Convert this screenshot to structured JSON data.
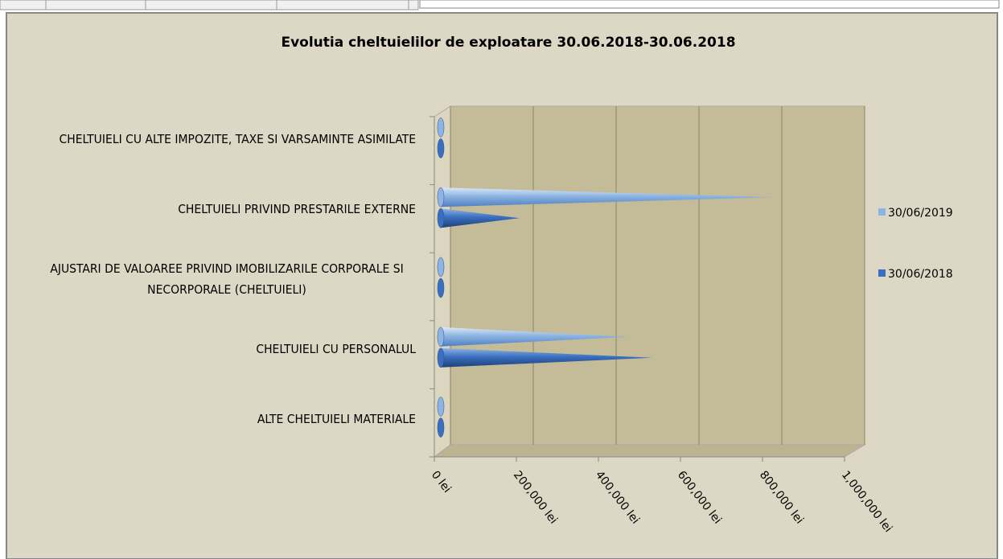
{
  "chart_data": {
    "type": "bar3d-cone",
    "orientation": "horizontal",
    "title": "Evolutia cheltuielilor de exploatare 30.06.2018-30.06.2018",
    "categories": [
      "CHELTUIELI CU ALTE IMPOZITE, TAXE SI VARSAMINTE ASIMILATE",
      "CHELTUIELI PRIVIND PRESTARILE EXTERNE",
      "AJUSTARI DE VALOAREE PRIVIND IMOBILIZARILE CORPORALE SI NECORPORALE (CHELTUIELI)",
      "CHELTUIELI CU PERSONALUL",
      "ALTE CHELTUIELI MATERIALE"
    ],
    "series": [
      {
        "name": "30/06/2019",
        "color": "#8db4e2",
        "values": [
          0,
          800000,
          0,
          450000,
          0
        ]
      },
      {
        "name": "30/06/2018",
        "color": "#3a6fbf",
        "values": [
          0,
          190000,
          0,
          510000,
          0
        ]
      }
    ],
    "xlim": [
      0,
      1000000
    ],
    "xticks": [
      {
        "value": 0,
        "label": "0 lei"
      },
      {
        "value": 200000,
        "label": "200,000 lei"
      },
      {
        "value": 400000,
        "label": "400,000 lei"
      },
      {
        "value": 600000,
        "label": "600,000 lei"
      },
      {
        "value": 800000,
        "label": "800,000 lei"
      },
      {
        "value": 1000000,
        "label": "1,000,000 lei"
      }
    ],
    "grid": true,
    "legend": "right"
  }
}
